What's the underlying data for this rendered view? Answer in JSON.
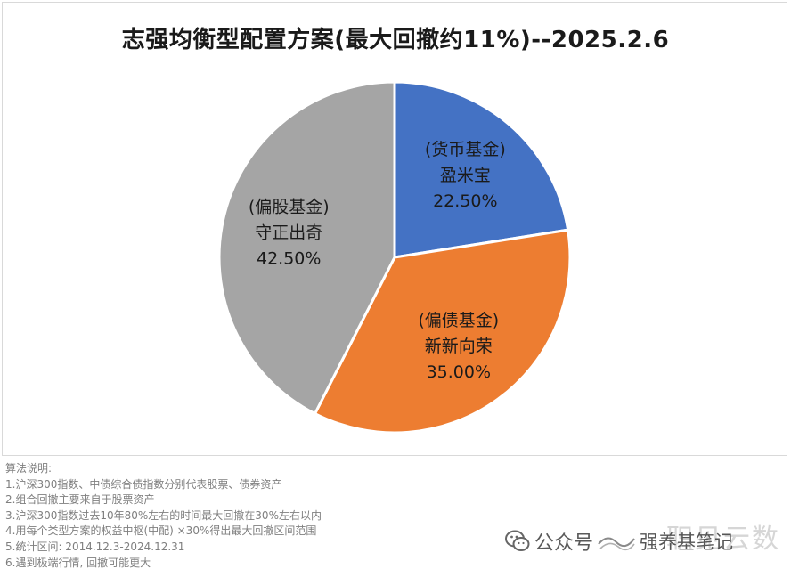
{
  "chart_data": {
    "type": "pie",
    "title": "志强均衡型配置方案(最大回撤约11%)--2025.2.6",
    "slices": [
      {
        "category": "(货币基金)",
        "fund": "盈米宝",
        "value": 22.5,
        "label": "22.50%",
        "color": "#4472C4"
      },
      {
        "category": "(偏债基金)",
        "fund": "新新向荣",
        "value": 35.0,
        "label": "35.00%",
        "color": "#ED7D31"
      },
      {
        "category": "(偏股基金)",
        "fund": "守正出奇",
        "value": 42.5,
        "label": "42.50%",
        "color": "#A5A5A5"
      }
    ]
  },
  "notes": {
    "heading": "算法说明:",
    "items": [
      "1.沪深300指数、中债综合债指数分别代表股票、债券资产",
      "2.组合回撤主要来自于股票资产",
      "3.沪深300指数过去10年80%左右的时间最大回撤在30%左右以内",
      "4.用每个类型方案的权益中枢(中配) ×30%得出最大回撤区间范围",
      "5.统计区间: 2014.12.3-2024.12.31",
      "6.遇到极端行情, 回撤可能更大"
    ]
  },
  "watermark": {
    "platform": "公众号",
    "account": "强养基笔记",
    "ghost_text": "职见云数",
    "icons": [
      "wechat-icon",
      "wave-logo-icon"
    ]
  }
}
